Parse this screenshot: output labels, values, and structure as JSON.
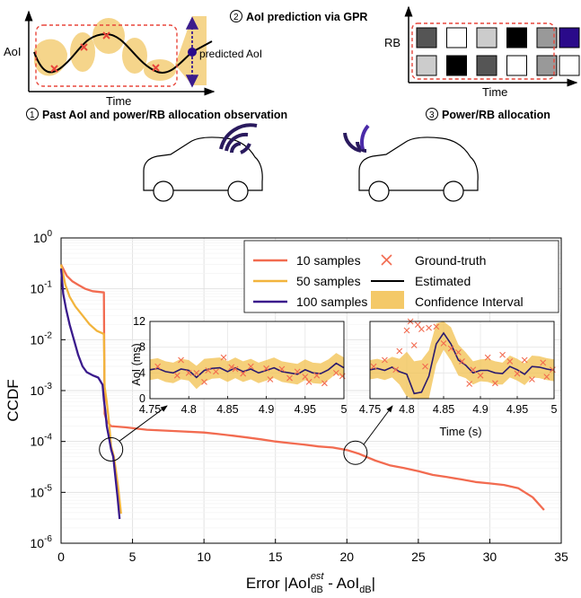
{
  "schematic": {
    "step1": {
      "num": "1",
      "text": "Past AoI and power/RB allocation observation",
      "ylabel": "AoI",
      "xlabel": "Time",
      "annotation": "predicted AoI"
    },
    "step2": {
      "num": "2",
      "text": "AoI prediction via GPR"
    },
    "step3": {
      "num": "3",
      "text": "Power/RB allocation",
      "ylabel": "RB",
      "xlabel": "Time",
      "grid_row1": [
        "#555555",
        "#ffffff",
        "#cccccc",
        "#000000",
        "#999999"
      ],
      "grid_row2": [
        "#cccccc",
        "#000000",
        "#555555",
        "#ffffff",
        "#999999"
      ],
      "new_row1": "#2a0a8a",
      "new_row2": "#ffffff"
    },
    "colors": {
      "band": "#f1c35a",
      "dashed": "#e8463b",
      "arrow": "#3b1c8c",
      "signal": "#2a1a5e"
    }
  },
  "chart_data": {
    "main": {
      "type": "line",
      "ylabel": "CCDF",
      "xlabel_main": "Error |AoI",
      "xlabel_sub1": "dB",
      "xlabel_sup": "est",
      "xlabel_mid": " - AoI",
      "xlabel_sub2": "dB",
      "xlabel_end": "|",
      "xlim": [
        0,
        35
      ],
      "ylog": true,
      "ylim_exp": [
        -6,
        0
      ],
      "xticks": [
        0,
        5,
        10,
        15,
        20,
        25,
        30,
        35
      ],
      "ytick_exps": [
        0,
        -1,
        -2,
        -3,
        -4,
        -5,
        -6
      ],
      "grid": true,
      "legend": {
        "placement": "top-right",
        "entries": [
          {
            "label": "10 samples",
            "kind": "line",
            "color": "#f26b50"
          },
          {
            "label": "50 samples",
            "kind": "line",
            "color": "#f2b43c"
          },
          {
            "label": "100 samples",
            "kind": "line",
            "color": "#3a1a8c"
          },
          {
            "label": "Ground-truth",
            "kind": "marker",
            "color": "#f26b50"
          },
          {
            "label": "Estimated",
            "kind": "line",
            "color": "#000000"
          },
          {
            "label": "Confidence Interval",
            "kind": "band",
            "color": "#f2c04e"
          }
        ]
      },
      "series": [
        {
          "name": "10 samples",
          "color": "#f26b50",
          "points": [
            [
              0,
              0.3
            ],
            [
              0.4,
              0.18
            ],
            [
              0.8,
              0.14
            ],
            [
              1.2,
              0.12
            ],
            [
              1.7,
              0.1
            ],
            [
              2.2,
              0.09
            ],
            [
              3.0,
              0.085
            ],
            [
              3.05,
              0.00035
            ],
            [
              3.2,
              0.00025
            ],
            [
              3.5,
              0.0002
            ],
            [
              4.5,
              0.00019
            ],
            [
              6,
              0.00017
            ],
            [
              8,
              0.00016
            ],
            [
              10,
              0.00015
            ],
            [
              11,
              0.00014
            ],
            [
              12,
              0.00013
            ],
            [
              13,
              0.00012
            ],
            [
              14,
              0.00011
            ],
            [
              15,
              0.0001
            ],
            [
              16,
              9.3e-05
            ],
            [
              17,
              8.7e-05
            ],
            [
              18,
              8e-05
            ],
            [
              19,
              7.6e-05
            ],
            [
              20,
              6.8e-05
            ],
            [
              20.8,
              5.8e-05
            ],
            [
              22,
              4.2e-05
            ],
            [
              23,
              3.4e-05
            ],
            [
              24,
              3e-05
            ],
            [
              25,
              2.6e-05
            ],
            [
              26,
              2.2e-05
            ],
            [
              27,
              2e-05
            ],
            [
              28,
              1.8e-05
            ],
            [
              29,
              1.6e-05
            ],
            [
              30,
              1.5e-05
            ],
            [
              31,
              1.4e-05
            ],
            [
              32,
              1.2e-05
            ],
            [
              33,
              8e-06
            ],
            [
              33.8,
              4.5e-06
            ]
          ]
        },
        {
          "name": "50 samples",
          "color": "#f2b43c",
          "points": [
            [
              0,
              0.3
            ],
            [
              0.3,
              0.12
            ],
            [
              0.6,
              0.07
            ],
            [
              1.0,
              0.045
            ],
            [
              1.5,
              0.03
            ],
            [
              2.0,
              0.02
            ],
            [
              2.5,
              0.015
            ],
            [
              3.0,
              0.013
            ],
            [
              3.05,
              0.0012
            ],
            [
              3.2,
              0.0006
            ],
            [
              3.35,
              0.00025
            ],
            [
              3.5,
              8e-05
            ],
            [
              3.7,
              5e-05
            ],
            [
              3.85,
              2.5e-05
            ],
            [
              4.0,
              1.2e-05
            ],
            [
              4.2,
              3.8e-06
            ]
          ]
        },
        {
          "name": "100 samples",
          "color": "#3a1a8c",
          "points": [
            [
              0,
              0.25
            ],
            [
              0.15,
              0.08
            ],
            [
              0.35,
              0.04
            ],
            [
              0.6,
              0.02
            ],
            [
              0.9,
              0.01
            ],
            [
              1.2,
              0.005
            ],
            [
              1.5,
              0.003
            ],
            [
              1.8,
              0.0023
            ],
            [
              2.2,
              0.002
            ],
            [
              2.6,
              0.0018
            ],
            [
              2.9,
              0.0013
            ],
            [
              3.0,
              0.00065
            ],
            [
              3.1,
              0.0004
            ],
            [
              3.2,
              0.0002
            ],
            [
              3.35,
              0.00012
            ],
            [
              3.5,
              7e-05
            ],
            [
              3.65,
              5e-05
            ],
            [
              3.8,
              2e-05
            ],
            [
              3.95,
              8e-06
            ],
            [
              4.1,
              3e-06
            ]
          ]
        }
      ],
      "zoom_circles": [
        {
          "x": 3.5,
          "y": 7e-05
        },
        {
          "x": 20.6,
          "y": 6e-05
        }
      ]
    },
    "insets": [
      {
        "type": "line",
        "ylabel": "AoI (ms)",
        "xlabel": "",
        "xlim": [
          4.75,
          5
        ],
        "ylim": [
          0,
          12
        ],
        "xticks": [
          "4.75",
          "4.8",
          "4.85",
          "4.9",
          "4.95",
          "5"
        ],
        "yticks": [
          "0",
          "4",
          "8",
          "12"
        ],
        "x": [
          4.75,
          4.76,
          4.77,
          4.78,
          4.79,
          4.8,
          4.81,
          4.82,
          4.83,
          4.84,
          4.85,
          4.86,
          4.87,
          4.88,
          4.89,
          4.9,
          4.91,
          4.92,
          4.93,
          4.94,
          4.95,
          4.96,
          4.97,
          4.98,
          4.99,
          5.0
        ],
        "estimated": [
          4.5,
          4.7,
          4.2,
          4.0,
          4.6,
          4.4,
          3.3,
          4.4,
          4.7,
          4.8,
          4.2,
          4.8,
          4.2,
          4.6,
          4.0,
          4.4,
          4.8,
          4.2,
          4.0,
          3.8,
          4.5,
          4.0,
          3.9,
          4.5,
          5.5,
          4.8
        ],
        "band": [
          1.6,
          1.6,
          1.6,
          1.6,
          1.6,
          1.6,
          1.8,
          1.8,
          1.6,
          1.6,
          1.6,
          1.6,
          1.6,
          1.6,
          1.6,
          1.6,
          1.6,
          1.6,
          1.6,
          1.6,
          1.6,
          1.6,
          1.6,
          1.6,
          1.6,
          1.6
        ],
        "ground_truth": [
          [
            4.76,
            5.0
          ],
          [
            4.785,
            3.6
          ],
          [
            4.79,
            6.0
          ],
          [
            4.81,
            4.0
          ],
          [
            4.82,
            2.6
          ],
          [
            4.825,
            4.4
          ],
          [
            4.845,
            6.4
          ],
          [
            4.855,
            4.9
          ],
          [
            4.87,
            3.9
          ],
          [
            4.88,
            5.0
          ],
          [
            4.9,
            4.7
          ],
          [
            4.905,
            3.0
          ],
          [
            4.92,
            4.6
          ],
          [
            4.93,
            3.2
          ],
          [
            4.94,
            4.2
          ],
          [
            4.95,
            3.4
          ],
          [
            4.955,
            2.6
          ],
          [
            4.965,
            3.6
          ],
          [
            4.975,
            2.4
          ],
          [
            4.99,
            4.0
          ],
          [
            4.998,
            3.5
          ],
          [
            4.8,
            4.0
          ],
          [
            4.835,
            4.2
          ],
          [
            4.86,
            4.6
          ]
        ]
      },
      {
        "type": "line",
        "ylabel": "",
        "xlabel": "Time (s)",
        "xlim": [
          4.75,
          5
        ],
        "ylim": [
          0,
          12
        ],
        "xticks": [
          "4.75",
          "4.8",
          "4.85",
          "4.9",
          "4.95",
          "5"
        ],
        "yticks": [],
        "x": [
          4.75,
          4.76,
          4.77,
          4.78,
          4.79,
          4.8,
          4.81,
          4.82,
          4.83,
          4.84,
          4.85,
          4.86,
          4.87,
          4.88,
          4.89,
          4.9,
          4.91,
          4.92,
          4.93,
          4.94,
          4.95,
          4.96,
          4.97,
          4.98,
          4.99,
          5.0
        ],
        "estimated": [
          4.5,
          4.7,
          4.4,
          4.9,
          4.2,
          3.8,
          0.8,
          1.0,
          3.5,
          8.5,
          10.2,
          8.5,
          6.0,
          5.2,
          4.0,
          4.4,
          4.4,
          4.0,
          3.9,
          5.0,
          4.5,
          3.8,
          5.0,
          4.9,
          4.6,
          4.4
        ],
        "band": [
          1.5,
          1.5,
          1.5,
          1.6,
          2.0,
          3.5,
          5.0,
          5.0,
          4.0,
          3.2,
          2.6,
          2.6,
          2.4,
          2.0,
          1.8,
          1.7,
          1.8,
          1.8,
          1.7,
          1.7,
          1.7,
          1.7,
          1.7,
          1.7,
          1.7,
          1.7
        ],
        "ground_truth": [
          [
            4.755,
            5.0
          ],
          [
            4.77,
            6.0
          ],
          [
            4.785,
            4.5
          ],
          [
            4.79,
            7.4
          ],
          [
            4.8,
            10.6
          ],
          [
            4.805,
            12.0
          ],
          [
            4.81,
            8.3
          ],
          [
            4.815,
            11.5
          ],
          [
            4.82,
            10.8
          ],
          [
            4.825,
            5.0
          ],
          [
            4.83,
            11.0
          ],
          [
            4.84,
            11.2
          ],
          [
            4.85,
            8.6
          ],
          [
            4.86,
            7.8
          ],
          [
            4.87,
            7.2
          ],
          [
            4.875,
            5.8
          ],
          [
            4.885,
            2.3
          ],
          [
            4.89,
            4.5
          ],
          [
            4.9,
            3.6
          ],
          [
            4.91,
            6.4
          ],
          [
            4.92,
            2.4
          ],
          [
            4.93,
            6.8
          ],
          [
            4.94,
            5.8
          ],
          [
            4.95,
            3.9
          ],
          [
            4.96,
            6.0
          ],
          [
            4.97,
            3.0
          ],
          [
            4.985,
            5.6
          ],
          [
            4.99,
            3.4
          ],
          [
            4.998,
            4.5
          ]
        ]
      }
    ]
  }
}
